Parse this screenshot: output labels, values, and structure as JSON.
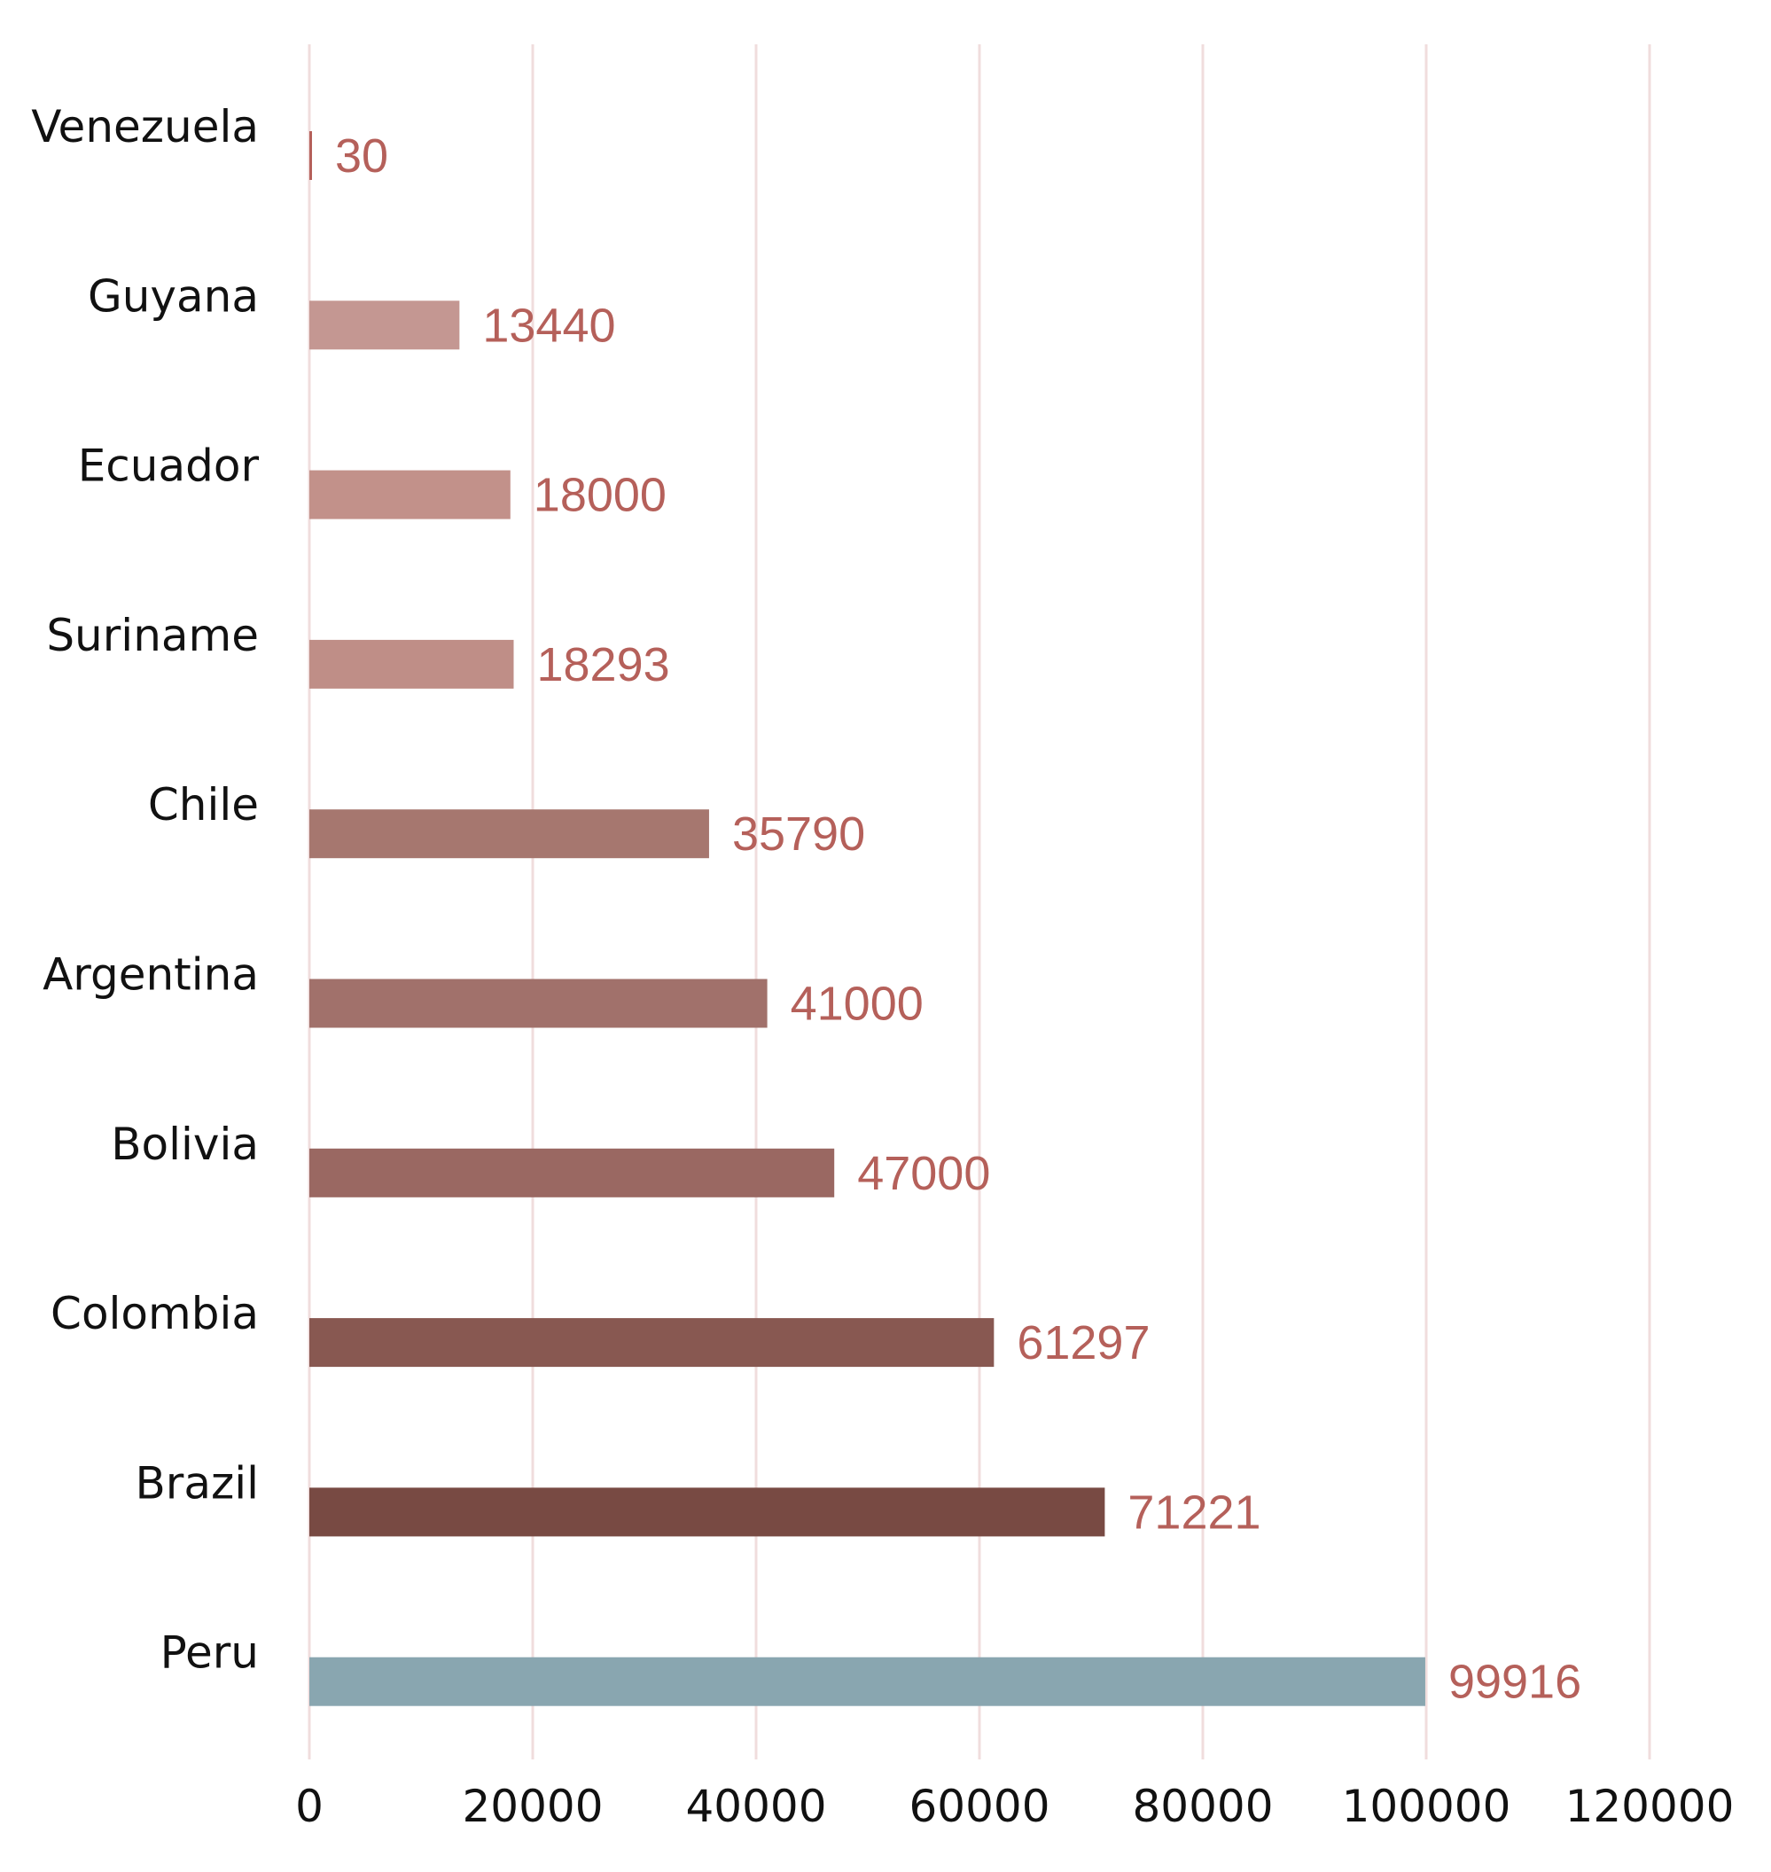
{
  "chart_data": {
    "type": "bar",
    "orientation": "horizontal",
    "title": "",
    "xlabel": "",
    "ylabel": "",
    "xlim": [
      0,
      120000
    ],
    "xticks": [
      0,
      20000,
      40000,
      60000,
      80000,
      100000,
      120000
    ],
    "xtick_labels": [
      "0",
      "20000",
      "40000",
      "60000",
      "80000",
      "100000",
      "120000"
    ],
    "grid": "vertical",
    "categories": [
      "Venezuela",
      "Guyana",
      "Ecuador",
      "Suriname",
      "Chile",
      "Argentina",
      "Bolivia",
      "Colombia",
      "Brazil",
      "Peru"
    ],
    "values": [
      30,
      13440,
      18000,
      18293,
      35790,
      41000,
      47000,
      61297,
      71221,
      99916
    ],
    "value_labels": [
      "30",
      "13440",
      "18000",
      "18293",
      "35790",
      "41000",
      "47000",
      "61297",
      "71221",
      "99916"
    ],
    "bar_colors": [
      "#b5605a",
      "#c49792",
      "#c2918a",
      "#bf8e87",
      "#a6776f",
      "#a1716b",
      "#9a6862",
      "#885851",
      "#784a43",
      "#89a6b0"
    ],
    "label_color": "#b5605a",
    "grid_color": "#f0dddd"
  }
}
